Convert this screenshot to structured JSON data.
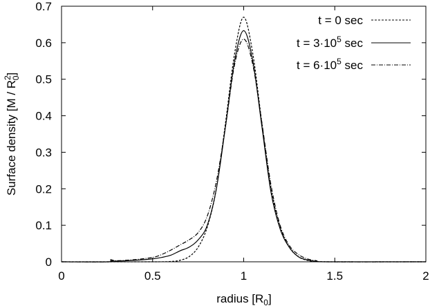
{
  "chart_data": {
    "type": "line",
    "xlabel": "radius  [R",
    "xlabel_sub": "0",
    "xlabel_end": "]",
    "ylabel": "Surface density  [M / R",
    "ylabel_sup": "2",
    "ylabel_sub": "0",
    "ylabel_end": "]",
    "xlim": [
      0,
      2
    ],
    "ylim": [
      0,
      0.7
    ],
    "x_ticks": [
      0,
      0.5,
      1,
      1.5,
      2
    ],
    "x_tick_labels": [
      "0",
      "0.5",
      "1",
      "1.5",
      "2"
    ],
    "y_ticks": [
      0,
      0.1,
      0.2,
      0.3,
      0.4,
      0.5,
      0.6,
      0.7
    ],
    "y_tick_labels": [
      "0",
      "0.1",
      "0.2",
      "0.3",
      "0.4",
      "0.5",
      "0.6",
      "0.7"
    ],
    "grid": false,
    "legend_position": "top-right",
    "series": [
      {
        "name": "t = 0 sec",
        "style": "dashed",
        "x": [
          0.0,
          0.5,
          0.6,
          0.65,
          0.7,
          0.75,
          0.8,
          0.85,
          0.9,
          0.95,
          1.0,
          1.05,
          1.1,
          1.15,
          1.2,
          1.25,
          1.3,
          1.35,
          1.4,
          1.5,
          2.0
        ],
        "y": [
          0.0,
          0.0,
          0.001,
          0.004,
          0.014,
          0.04,
          0.095,
          0.2,
          0.38,
          0.57,
          0.67,
          0.57,
          0.38,
          0.2,
          0.095,
          0.04,
          0.014,
          0.004,
          0.001,
          0.0,
          0.0
        ]
      },
      {
        "name": "t = 3·10",
        "name_sup": "5",
        "name_end": " sec",
        "style": "solid",
        "x": [
          0.0,
          0.26,
          0.27,
          0.3,
          0.4,
          0.5,
          0.55,
          0.6,
          0.65,
          0.7,
          0.75,
          0.8,
          0.85,
          0.9,
          0.95,
          1.0,
          1.05,
          1.1,
          1.15,
          1.2,
          1.25,
          1.3,
          1.35,
          1.4,
          1.45,
          2.0
        ],
        "y": [
          0.0,
          0.0,
          0.003,
          0.002,
          0.004,
          0.008,
          0.012,
          0.018,
          0.03,
          0.04,
          0.06,
          0.1,
          0.2,
          0.37,
          0.55,
          0.633,
          0.55,
          0.37,
          0.19,
          0.09,
          0.04,
          0.014,
          0.005,
          0.001,
          0.0,
          0.0
        ]
      },
      {
        "name": "t = 6·10",
        "name_sup": "5",
        "name_end": " sec",
        "style": "dashdot",
        "x": [
          0.0,
          0.26,
          0.27,
          0.3,
          0.4,
          0.5,
          0.55,
          0.6,
          0.65,
          0.7,
          0.75,
          0.8,
          0.85,
          0.9,
          0.95,
          1.0,
          1.05,
          1.1,
          1.15,
          1.2,
          1.25,
          1.3,
          1.35,
          1.4,
          1.45,
          2.0
        ],
        "y": [
          0.0,
          0.0,
          0.006,
          0.003,
          0.006,
          0.012,
          0.02,
          0.032,
          0.046,
          0.06,
          0.08,
          0.125,
          0.22,
          0.37,
          0.54,
          0.61,
          0.54,
          0.38,
          0.21,
          0.1,
          0.045,
          0.02,
          0.008,
          0.003,
          0.0,
          0.0
        ]
      }
    ]
  }
}
